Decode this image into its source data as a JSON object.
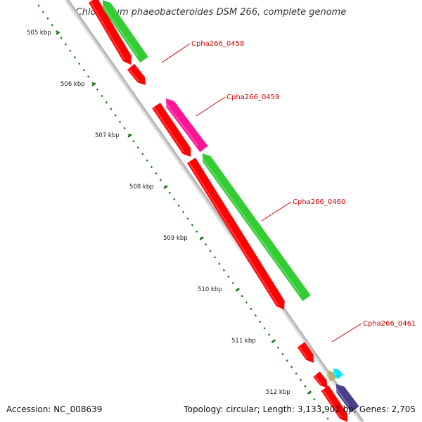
{
  "title": "Chlorobium phaeobacteroides DSM 266, complete genome",
  "ruler": {
    "unit": "kbp",
    "labels": [
      "505 kbp",
      "506 kbp",
      "507 kbp",
      "508 kbp",
      "509 kbp",
      "510 kbp",
      "511 kbp",
      "512 kbp"
    ]
  },
  "genes": [
    {
      "id": "g-0457-red",
      "strand": "reverse",
      "color": "#ff0000"
    },
    {
      "id": "g-0457-green",
      "strand": "forward",
      "color": "#33cc33"
    },
    {
      "id": "g-0458",
      "strand": "reverse",
      "color": "#ff0000",
      "label": "Cpha266_0458"
    },
    {
      "id": "g-0459",
      "strand": "forward",
      "color": "#ff1493",
      "label": "Cpha266_0459"
    },
    {
      "id": "g-red-mid",
      "strand": "reverse",
      "color": "#ff0000"
    },
    {
      "id": "g-0460",
      "strand": "forward",
      "color": "#33cc33",
      "label": "Cpha266_0460"
    },
    {
      "id": "g-red-long",
      "strand": "reverse",
      "color": "#ff0000"
    },
    {
      "id": "g-0461",
      "strand": "reverse",
      "color": "#ff0000",
      "label": "Cpha266_0461"
    },
    {
      "id": "g-red-small",
      "strand": "reverse",
      "color": "#ff0000"
    },
    {
      "id": "g-tan",
      "strand": "forward",
      "color": "#b8b070"
    },
    {
      "id": "g-cyan",
      "strand": "forward",
      "color": "#00e5ff"
    },
    {
      "id": "g-purple",
      "strand": "forward",
      "color": "#4b3f8c"
    },
    {
      "id": "g-red-bottom",
      "strand": "reverse",
      "color": "#ff0000"
    }
  ],
  "colors": {
    "backbone": "#999999",
    "ticks": "#1a7a1a",
    "label": "#cc0000"
  },
  "footer": {
    "accession": "Accession: NC_008639",
    "stats": "Topology: circular; Length: 3,133,902 bp; Genes: 2,705"
  }
}
